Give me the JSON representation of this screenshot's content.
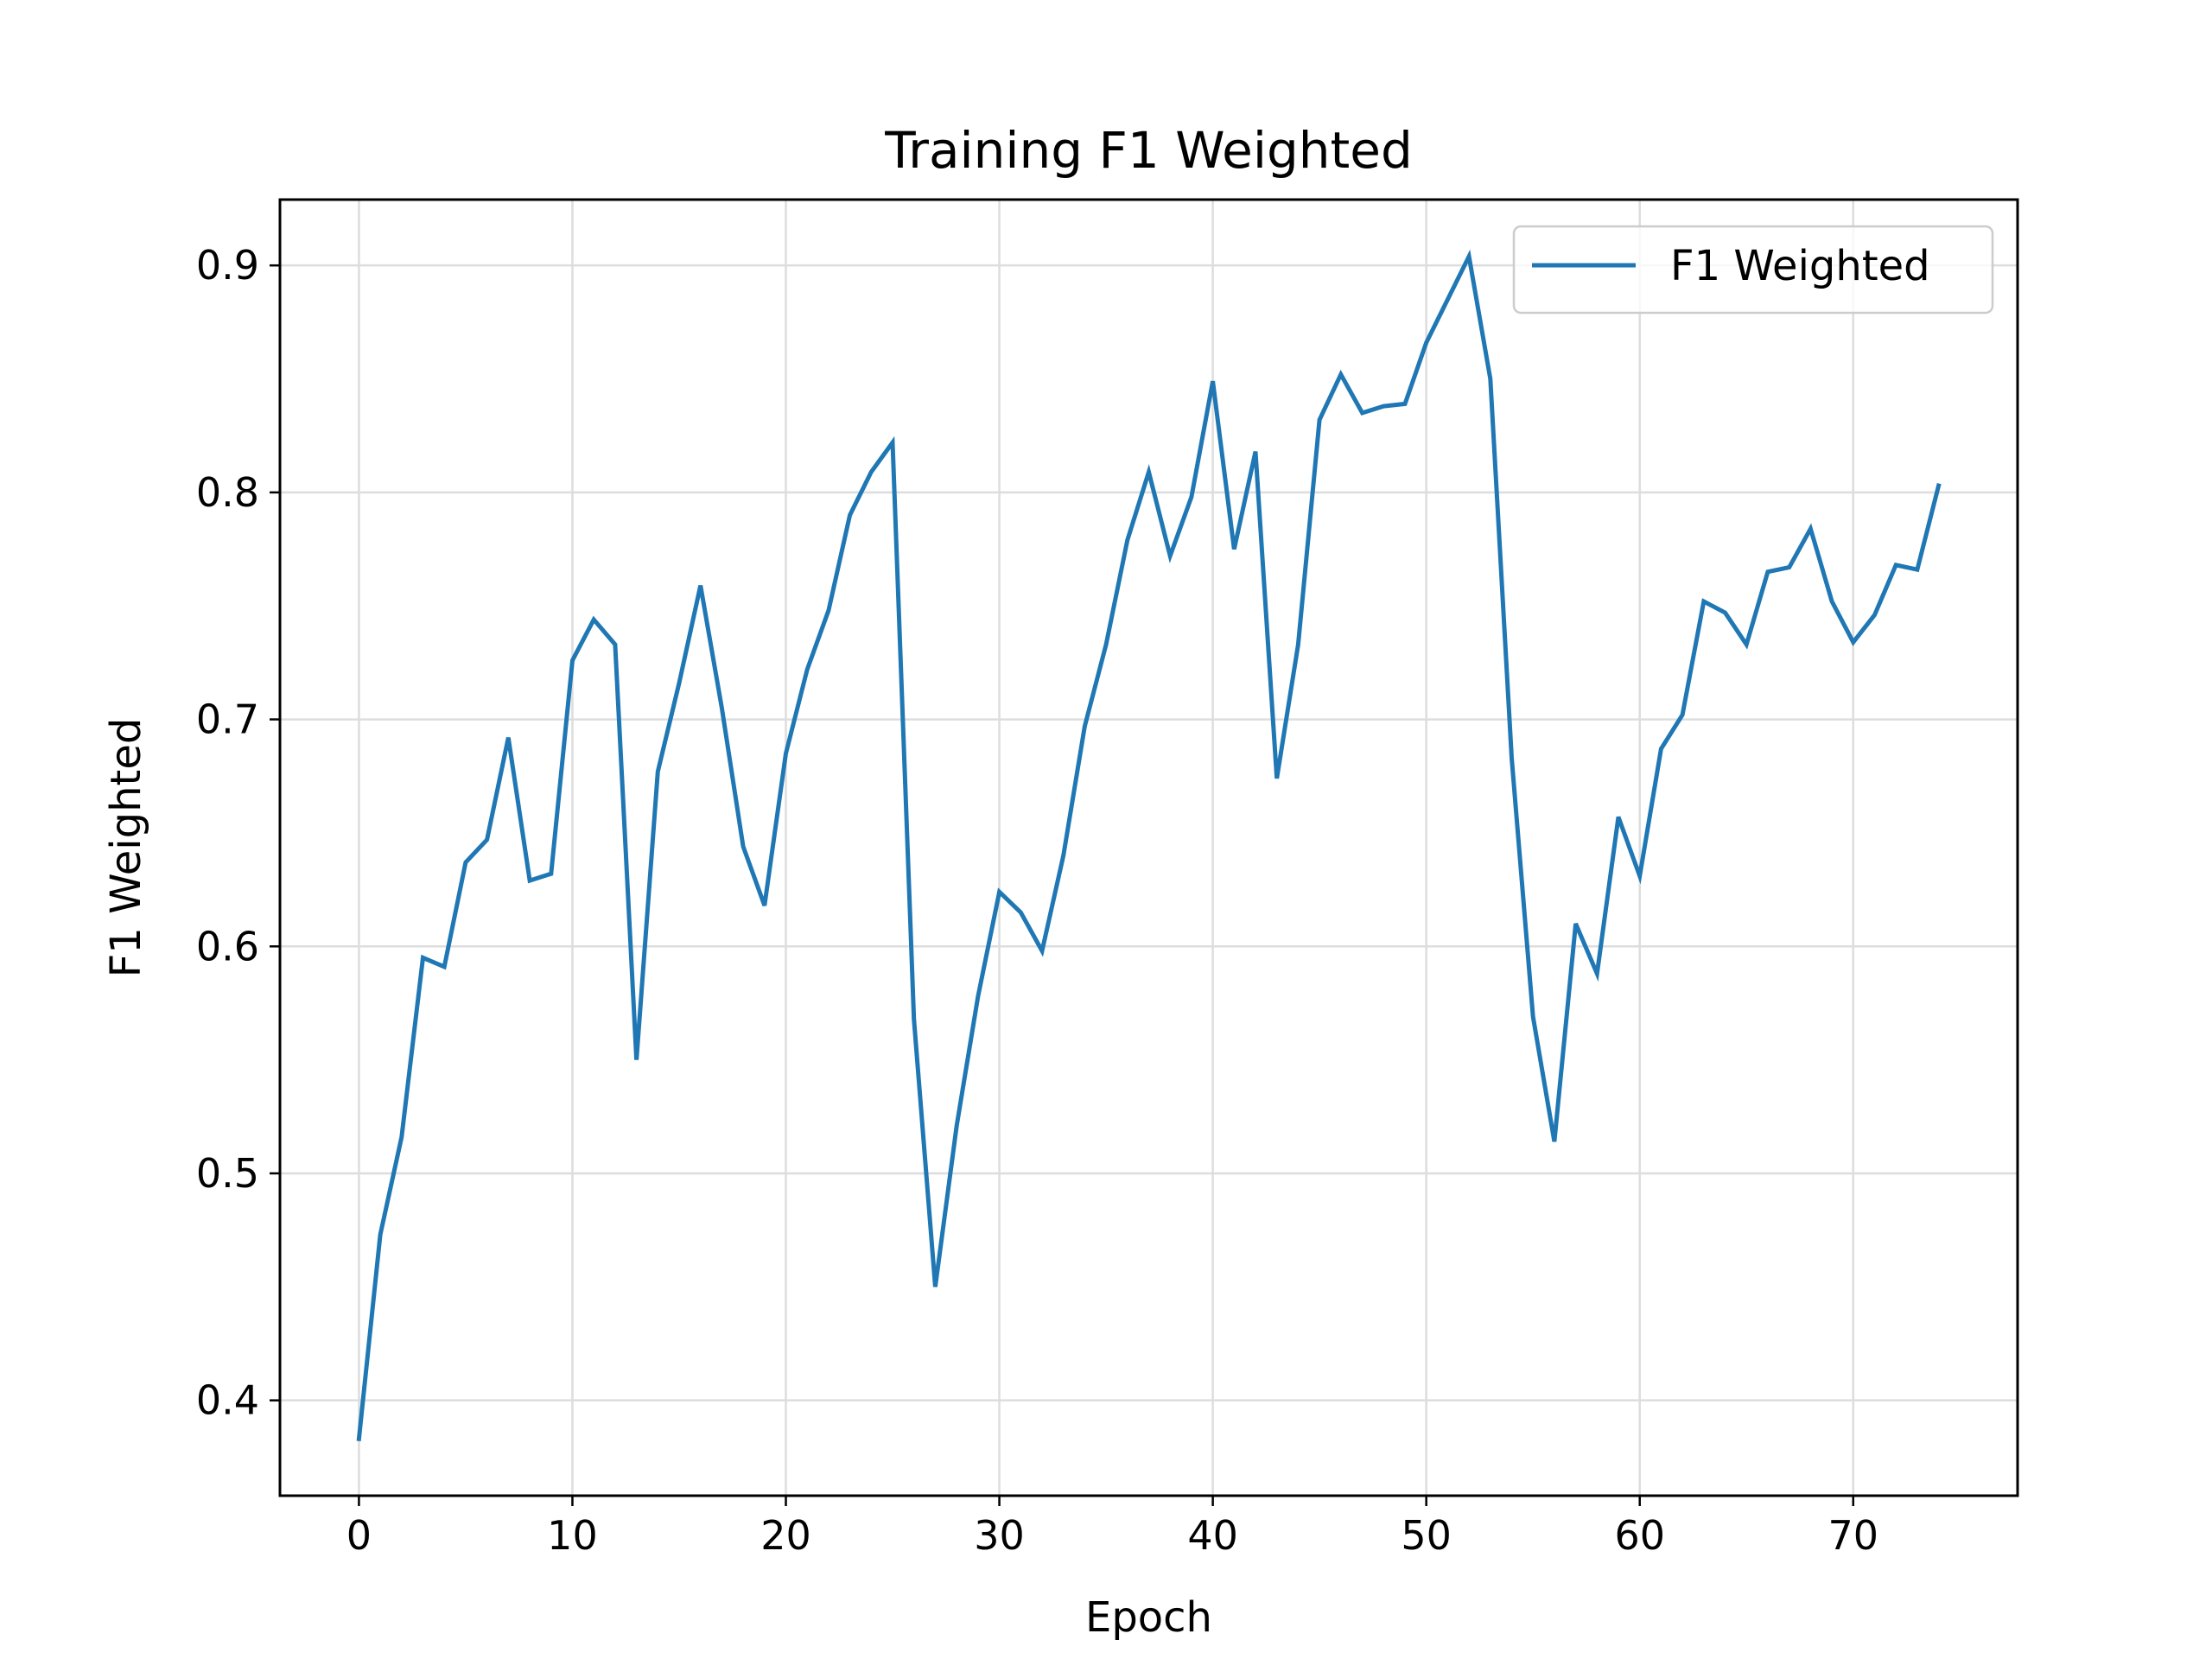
{
  "chart_data": {
    "type": "line",
    "title": "Training F1 Weighted",
    "xlabel": "Epoch",
    "ylabel": "F1 Weighted",
    "xlim": [
      -3.7,
      77.7
    ],
    "ylim": [
      0.358,
      0.929
    ],
    "xticks": [
      0,
      10,
      20,
      30,
      40,
      50,
      60,
      70
    ],
    "yticks": [
      0.4,
      0.5,
      0.6,
      0.7,
      0.8,
      0.9
    ],
    "xtick_labels": [
      "0",
      "10",
      "20",
      "30",
      "40",
      "50",
      "60",
      "70"
    ],
    "ytick_labels": [
      "0.4",
      "0.5",
      "0.6",
      "0.7",
      "0.8",
      "0.9"
    ],
    "grid": true,
    "legend_position": "top-right",
    "series": [
      {
        "name": "F1 Weighted",
        "color": "#1f77b4",
        "x": [
          0,
          1,
          2,
          3,
          4,
          5,
          6,
          7,
          8,
          9,
          10,
          11,
          12,
          13,
          14,
          15,
          16,
          17,
          18,
          19,
          20,
          21,
          22,
          23,
          24,
          25,
          26,
          27,
          28,
          29,
          30,
          31,
          32,
          33,
          34,
          35,
          36,
          37,
          38,
          39,
          40,
          41,
          42,
          43,
          44,
          45,
          46,
          47,
          48,
          49,
          50,
          51,
          52,
          53,
          54,
          55,
          56,
          57,
          58,
          59,
          60,
          61,
          62,
          63,
          64,
          65,
          66,
          67,
          68,
          69,
          70,
          71,
          72,
          73,
          74
        ],
        "values": [
          0.383,
          0.473,
          0.516,
          0.595,
          0.591,
          0.637,
          0.647,
          0.692,
          0.629,
          0.632,
          0.726,
          0.744,
          0.733,
          0.55,
          0.677,
          0.716,
          0.759,
          0.705,
          0.644,
          0.618,
          0.685,
          0.722,
          0.748,
          0.79,
          0.809,
          0.822,
          0.568,
          0.45,
          0.521,
          0.578,
          0.624,
          0.615,
          0.598,
          0.64,
          0.697,
          0.733,
          0.779,
          0.809,
          0.772,
          0.798,
          0.849,
          0.775,
          0.818,
          0.674,
          0.733,
          0.832,
          0.852,
          0.835,
          0.838,
          0.839,
          0.866,
          0.885,
          0.904,
          0.85,
          0.683,
          0.569,
          0.514,
          0.61,
          0.588,
          0.657,
          0.631,
          0.687,
          0.702,
          0.752,
          0.747,
          0.733,
          0.765,
          0.767,
          0.784,
          0.752,
          0.734,
          0.746,
          0.768,
          0.766,
          0.803
        ]
      }
    ]
  }
}
